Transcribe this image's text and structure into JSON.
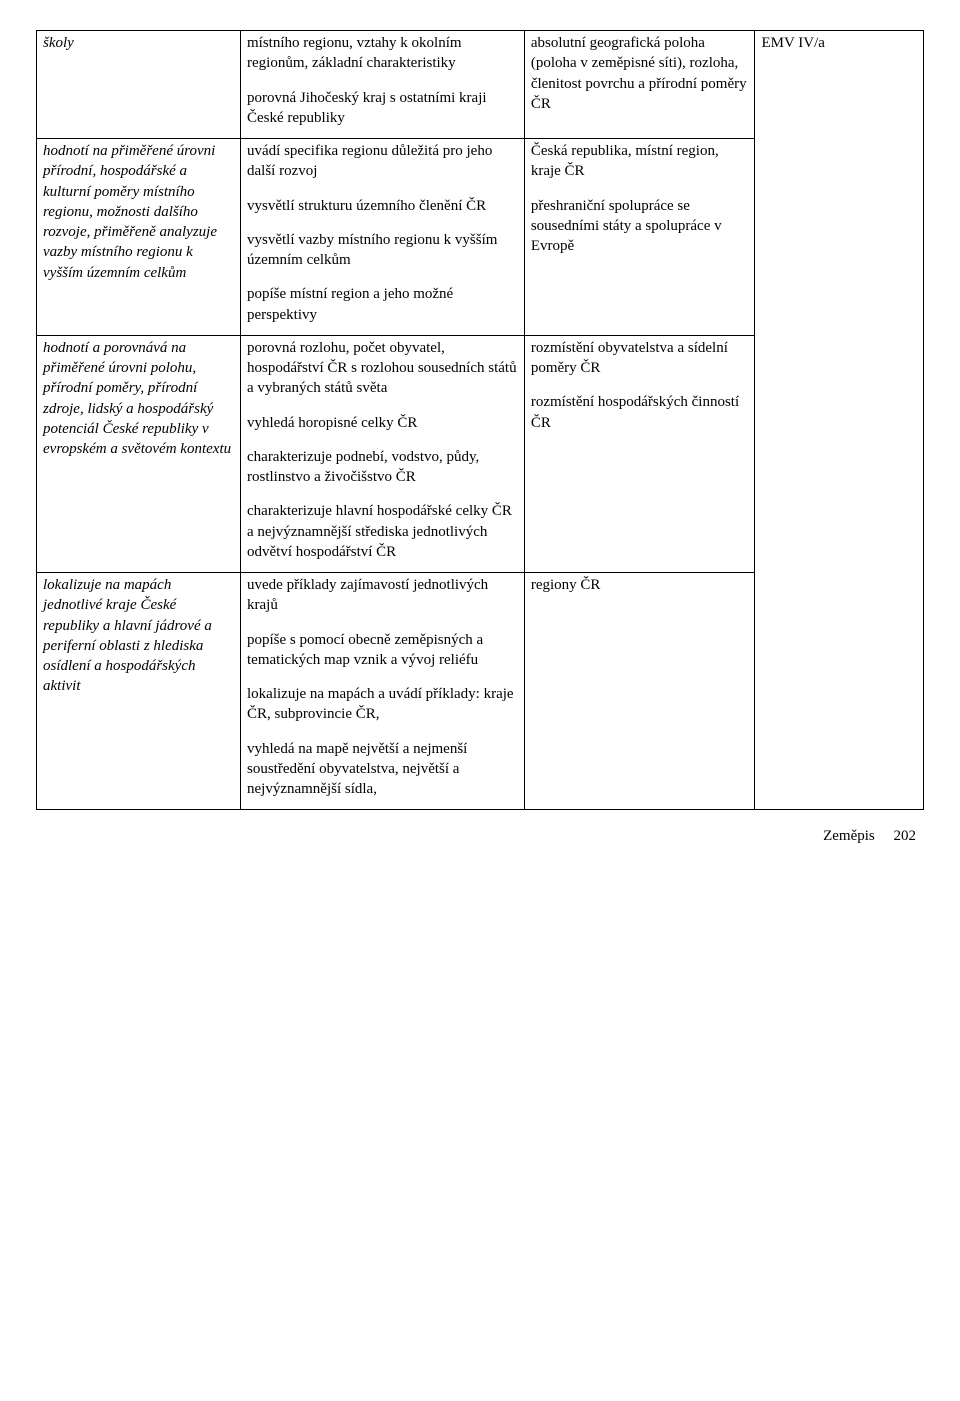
{
  "row1": {
    "c1": "školy",
    "c2a": "místního regionu, vztahy k okolním regionům, základní charakteristiky",
    "c2b": "porovná Jihočeský kraj s ostatními kraji České republiky",
    "c3": "absolutní geografická poloha (poloha v zeměpisné síti), rozloha, členitost povrchu a přírodní poměry ČR",
    "c4": ""
  },
  "row2": {
    "c1a": "hodnotí na přiměřené úrovni přírodní, hospodářské a kulturní poměry místního regionu, možnosti dalšího rozvoje, přiměřeně analyzuje vazby místního regionu k vyšším územním celkům",
    "c2a": "uvádí specifika regionu důležitá pro jeho další rozvoj",
    "c2b": "vysvětlí strukturu územního členění ČR",
    "c2c": "vysvětlí vazby místního regionu k vyšším územním celkům",
    "c2d": "popíše místní region a jeho možné perspektivy",
    "c3a": "Česká republika, místní region, kraje ČR",
    "c3b": "přeshraniční spolupráce se sousedními státy a spolupráce v Evropě",
    "c4": "EMV IV/a"
  },
  "row3": {
    "c1": "hodnotí a porovnává na přiměřené úrovni polohu, přírodní poměry, přírodní zdroje, lidský a hospodářský potenciál České republiky v evropském a světovém kontextu",
    "c2a": "porovná rozlohu, počet obyvatel, hospodářství ČR s rozlohou sousedních států a vybraných států světa",
    "c2b": "vyhledá horopisné celky ČR",
    "c2c": "charakterizuje podnebí, vodstvo, půdy, rostlinstvo a živočišstvo ČR",
    "c2d": "charakterizuje hlavní hospodářské celky ČR a nejvýznamnější střediska jednotlivých odvětví hospodářství ČR",
    "c3a": "rozmístění obyvatelstva a sídelní poměry ČR",
    "c3b": "rozmístění hospodářských činností ČR",
    "c4": ""
  },
  "row4": {
    "c1": "lokalizuje na mapách jednotlivé kraje České republiky a hlavní jádrové a periferní oblasti z hlediska osídlení a hospodářských aktivit",
    "c2a": "uvede příklady zajímavostí jednotlivých krajů",
    "c2b": "popíše s pomocí obecně zeměpisných a tematických map vznik a vývoj reliéfu",
    "c2c": "lokalizuje na mapách a uvádí příklady: kraje ČR, subprovincie ČR,",
    "c2d": "vyhledá na mapě největší a nejmenší soustředění obyvatelstva, největší a nejvýznamnější sídla,",
    "c3": "regiony ČR",
    "c4": ""
  },
  "footer": {
    "subject": "Zeměpis",
    "page": "202"
  }
}
